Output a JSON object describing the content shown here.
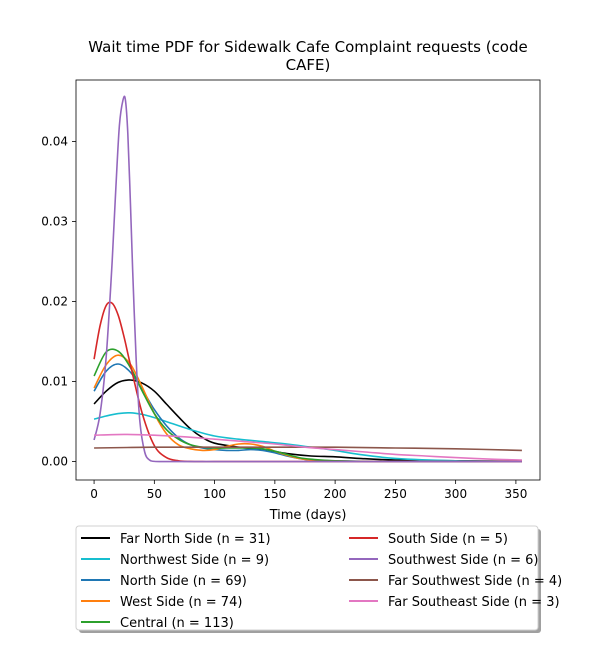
{
  "chart_data": {
    "type": "line",
    "title": "Wait time PDF for Sidewalk Cafe Complaint  requests (code\nCAFE)",
    "xlabel": "Time (days)",
    "ylabel": "",
    "xlim": [
      -15,
      370
    ],
    "ylim": [
      -0.0023,
      0.0477
    ],
    "xticks": [
      0,
      50,
      100,
      150,
      200,
      250,
      300,
      350
    ],
    "yticks": [
      0.0,
      0.01,
      0.02,
      0.03,
      0.04
    ],
    "ytick_labels": [
      "0.00",
      "0.01",
      "0.02",
      "0.03",
      "0.04"
    ],
    "grid": false,
    "legend_position": "below plot, two columns, with shadow",
    "series": [
      {
        "name": "Far North Side (n = 31)",
        "color": "#000000",
        "x": [
          0,
          10,
          20,
          30,
          40,
          50,
          60,
          70,
          80,
          90,
          100,
          120,
          140,
          160,
          180,
          200,
          220,
          250,
          300,
          355
        ],
        "y": [
          0.0072,
          0.0088,
          0.0099,
          0.0102,
          0.0098,
          0.0088,
          0.0072,
          0.0056,
          0.0041,
          0.003,
          0.0023,
          0.0018,
          0.0015,
          0.001,
          0.0007,
          0.0006,
          0.0004,
          0.0002,
          0.0001,
          5e-05
        ]
      },
      {
        "name": "Northwest Side (n = 9)",
        "color": "#17becf",
        "x": [
          0,
          10,
          20,
          30,
          40,
          50,
          60,
          80,
          100,
          120,
          140,
          160,
          180,
          200,
          220,
          250,
          300,
          355
        ],
        "y": [
          0.0053,
          0.0057,
          0.006,
          0.0061,
          0.0059,
          0.0055,
          0.005,
          0.004,
          0.0032,
          0.0028,
          0.0025,
          0.0022,
          0.0018,
          0.0014,
          0.0009,
          0.0004,
          0.0001,
          3e-05
        ]
      },
      {
        "name": "North Side (n = 69)",
        "color": "#1f77b4",
        "x": [
          0,
          10,
          20,
          30,
          40,
          50,
          60,
          70,
          80,
          90,
          100,
          110,
          120,
          130,
          140,
          150,
          160,
          170,
          180,
          200,
          250,
          355
        ],
        "y": [
          0.0088,
          0.0113,
          0.0122,
          0.0112,
          0.009,
          0.0065,
          0.0045,
          0.003,
          0.0021,
          0.0017,
          0.0015,
          0.0014,
          0.0014,
          0.0015,
          0.0014,
          0.0011,
          0.0007,
          0.0004,
          0.0002,
          0.0001,
          1e-05,
          0.0
        ]
      },
      {
        "name": "West Side (n = 74)",
        "color": "#ff7f0e",
        "x": [
          0,
          10,
          20,
          30,
          40,
          50,
          60,
          70,
          80,
          90,
          100,
          110,
          120,
          130,
          140,
          150,
          160,
          170,
          180,
          200,
          250,
          355
        ],
        "y": [
          0.0092,
          0.0121,
          0.0133,
          0.0122,
          0.0093,
          0.006,
          0.0035,
          0.0021,
          0.0016,
          0.0014,
          0.0015,
          0.0019,
          0.0022,
          0.0022,
          0.0019,
          0.0013,
          0.0008,
          0.0004,
          0.0002,
          5e-05,
          0.0,
          0.0
        ]
      },
      {
        "name": "Central (n = 113)",
        "color": "#2ca02c",
        "x": [
          0,
          10,
          20,
          30,
          40,
          50,
          60,
          70,
          80,
          90,
          100,
          110,
          120,
          130,
          140,
          150,
          160,
          170,
          180,
          200,
          250,
          355
        ],
        "y": [
          0.0107,
          0.0137,
          0.0138,
          0.0118,
          0.0088,
          0.006,
          0.004,
          0.0028,
          0.0021,
          0.0018,
          0.0017,
          0.0017,
          0.0017,
          0.0017,
          0.0016,
          0.0013,
          0.0009,
          0.0005,
          0.0003,
          0.0001,
          0.0,
          0.0
        ]
      },
      {
        "name": "South Side (n = 5)",
        "color": "#d62728",
        "x": [
          0,
          5,
          10,
          15,
          20,
          25,
          30,
          40,
          50,
          60,
          70,
          80,
          90,
          100,
          120,
          150,
          200,
          355
        ],
        "y": [
          0.0128,
          0.017,
          0.0195,
          0.0198,
          0.0183,
          0.0155,
          0.0122,
          0.006,
          0.002,
          0.0005,
          0.0001,
          2e-05,
          0.0,
          0.0,
          0.0,
          0.0,
          0.0,
          0.0
        ]
      },
      {
        "name": "Southwest Side (n = 6)",
        "color": "#9467bd",
        "x": [
          0,
          5,
          10,
          15,
          18,
          21,
          24,
          26,
          28,
          30,
          32,
          35,
          38,
          42,
          46,
          50,
          60,
          100,
          200,
          355
        ],
        "y": [
          0.0027,
          0.006,
          0.013,
          0.025,
          0.034,
          0.042,
          0.0452,
          0.0452,
          0.041,
          0.033,
          0.024,
          0.0125,
          0.005,
          0.0012,
          0.0002,
          3e-05,
          0.0,
          0.0,
          0.0,
          0.0
        ]
      },
      {
        "name": "Far Southwest Side (n = 4)",
        "color": "#8c564b",
        "x": [
          0,
          50,
          100,
          150,
          200,
          250,
          300,
          355
        ],
        "y": [
          0.0017,
          0.0018,
          0.0018,
          0.0018,
          0.0018,
          0.0017,
          0.0016,
          0.0014
        ]
      },
      {
        "name": "Far Southeast Side (n = 3)",
        "color": "#e377c2",
        "x": [
          0,
          25,
          50,
          75,
          100,
          125,
          150,
          175,
          200,
          225,
          250,
          275,
          300,
          330,
          355
        ],
        "y": [
          0.0033,
          0.0034,
          0.0033,
          0.0031,
          0.0028,
          0.0025,
          0.0022,
          0.0018,
          0.0015,
          0.0012,
          0.0009,
          0.0007,
          0.0005,
          0.0003,
          0.0002
        ]
      }
    ]
  }
}
